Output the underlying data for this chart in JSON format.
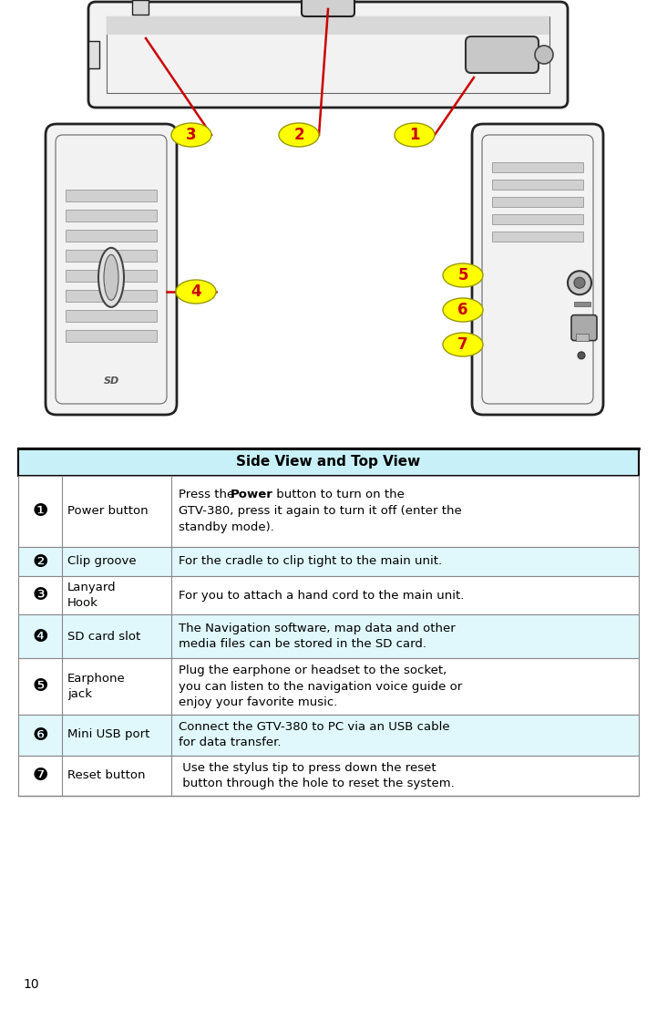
{
  "page_number": "10",
  "table_header": "Side View and Top View",
  "header_bg": "#c8f0f8",
  "header_border": "#000000",
  "row_bg_even": "#ffffff",
  "row_bg_odd": "#e8f8fc",
  "border_color": "#888888",
  "rows": [
    {
      "num": "❶",
      "label": "Power button",
      "desc": "Press the [b]Power[/b] button to turn on the\nGTV-380, press it again to turn it off (enter the\nstandby mode).",
      "has_bold": true
    },
    {
      "num": "❷",
      "label": "Clip groove",
      "desc": "For the cradle to clip tight to the main unit.",
      "has_bold": false
    },
    {
      "num": "❸",
      "label": "Lanyard\nHook",
      "desc": "For you to attach a hand cord to the main unit.",
      "has_bold": false
    },
    {
      "num": "❹",
      "label": "SD card slot",
      "desc": "The Navigation software, map data and other\nmedia files can be stored in the SD card.",
      "has_bold": false
    },
    {
      "num": "❺",
      "label": "Earphone\njack",
      "desc": "Plug the earphone or headset to the socket,\nyou can listen to the navigation voice guide or\nenjoy your favorite music.",
      "has_bold": false
    },
    {
      "num": "❻",
      "label": "Mini USB port",
      "desc": "Connect the GTV-380 to PC via an USB cable\nfor data transfer.",
      "has_bold": false
    },
    {
      "num": "❼",
      "label": "Reset button",
      "desc": " Use the stylus tip to press down the reset\n button through the hole to reset the system.",
      "has_bold": false
    }
  ]
}
